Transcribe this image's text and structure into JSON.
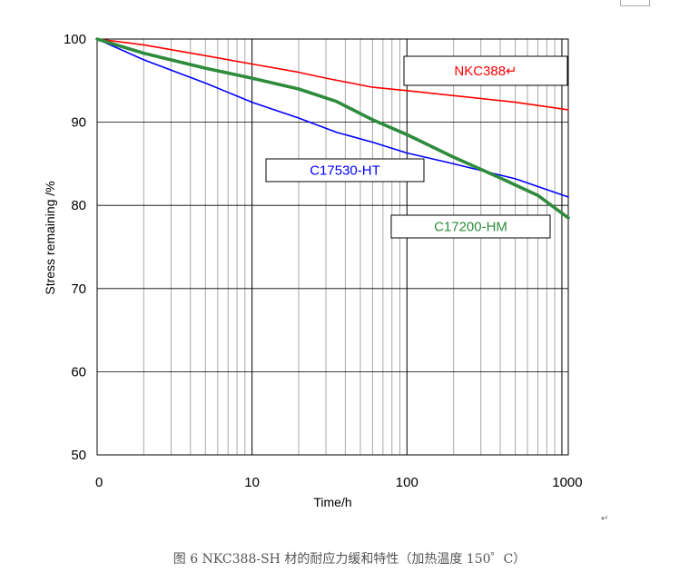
{
  "caption": "图 6  NKC388-SH 材的耐应力缓和特性（加热温度 150゜C）",
  "chart_data": {
    "type": "line",
    "title": "",
    "xlabel": "Time/h",
    "ylabel": "Stress remaining  /%",
    "xscale": "log",
    "xlim": [
      1,
      1100
    ],
    "ylim": [
      50,
      100
    ],
    "x_tick_labels": [
      "0",
      "10",
      "100",
      "1000"
    ],
    "y_ticks": [
      50,
      60,
      70,
      80,
      90,
      100
    ],
    "grid": true,
    "series": [
      {
        "name": "NKC388",
        "color": "#ff0000",
        "x": [
          1,
          2,
          5,
          10,
          20,
          30,
          60,
          100,
          200,
          500,
          1100
        ],
        "y": [
          100,
          99.3,
          98.0,
          97.0,
          96.0,
          95.3,
          94.2,
          93.8,
          93.2,
          92.4,
          91.5
        ]
      },
      {
        "name": "C17530-HT",
        "color": "#0000ff",
        "x": [
          1,
          2,
          5,
          10,
          20,
          35,
          60,
          100,
          200,
          500,
          1100
        ],
        "y": [
          100,
          97.5,
          94.7,
          92.4,
          90.5,
          88.8,
          87.6,
          86.3,
          85.0,
          83.2,
          81.0
        ]
      },
      {
        "name": "C17200-HM",
        "color": "#2e8b3c",
        "x": [
          1,
          2,
          5,
          10,
          20,
          35,
          60,
          100,
          200,
          400,
          700,
          1100
        ],
        "y": [
          100,
          98.3,
          96.5,
          95.3,
          94.0,
          92.5,
          90.3,
          88.5,
          85.8,
          83.3,
          81.2,
          78.5
        ]
      }
    ],
    "annotations": [
      {
        "text": "NKC388↵",
        "series": "NKC388"
      },
      {
        "text": "C17530-HT",
        "series": "C17530-HT"
      },
      {
        "text": "C17200-HM",
        "series": "C17200-HM"
      }
    ]
  },
  "marks": {
    "para1": "↵",
    "para2": "↵"
  }
}
